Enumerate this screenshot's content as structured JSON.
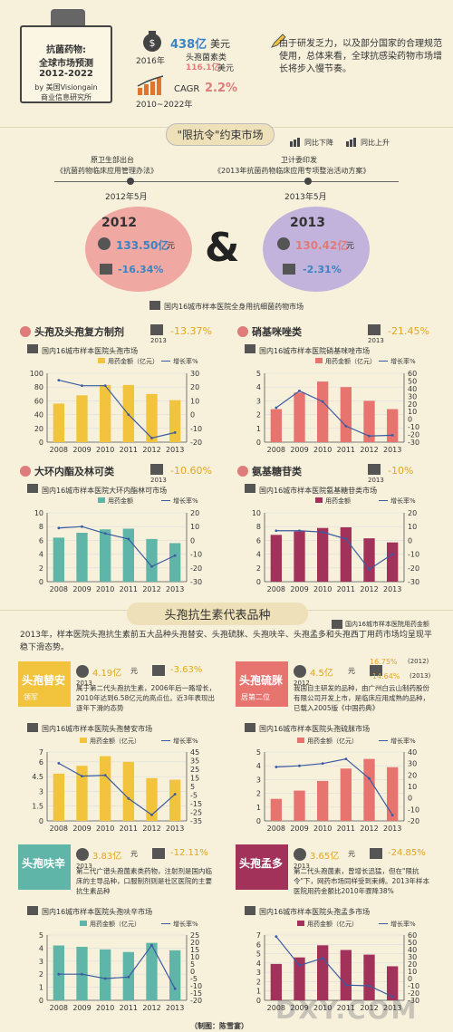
{
  "header": {
    "box_line1": "抗菌药物:",
    "box_line2": "全球市场预测",
    "box_line3": "2012-2022",
    "box_line4": "by 美国Visiongain",
    "box_line5": "商业信息研究所",
    "stat_value": "438亿",
    "stat_unit": "美元",
    "stat_year": "2016年",
    "stat_sub": "头孢菌素类",
    "stat_sub_value": "116.1亿",
    "stat_sub_unit": "美元",
    "cagr_label": "CAGR",
    "cagr_value": "2.2%",
    "cagr_period": "2010~2022年",
    "note": "由于研发乏力，以及部分国家的合理规范使用，总体来看，全球抗感染药物市场增长将步入慢节奏。"
  },
  "section1": {
    "title": "\"限抗令\"约束市场",
    "legend_down": "同比下降",
    "legend_up": "同比上升",
    "policy1_org": "原卫生部出台",
    "policy1_name": "《抗菌药物临床应用管理办法》",
    "policy1_date": "2012年5月",
    "policy2_org": "卫计委印发",
    "policy2_name": "《2013年抗菌药物临床应用专项整治活动方案》",
    "policy2_date": "2013年5月",
    "y2012": "2012",
    "v2012": "133.50亿",
    "v2012_unit": "元",
    "c2012": "-16.34%",
    "y2013": "2013",
    "v2013": "130.42亿",
    "v2013_unit": "元",
    "c2013": "-2.31%",
    "amp": "&",
    "footnote": "国内16城市样本医院全身用抗细菌药物市场"
  },
  "panels": [
    {
      "title": "头孢及头孢复方制剂",
      "pct": "-13.37%",
      "year": "2013",
      "sub": "国内16城市样本医院头孢市场",
      "legend_bar": "用药金额（亿元）",
      "legend_line": "增长率%",
      "color": "#f2c43d"
    },
    {
      "title": "硝基咪唑类",
      "pct": "-21.45%",
      "year": "2013",
      "sub": "国内16城市样本医院硝基咪唑市场",
      "legend_bar": "用药金额（亿元）",
      "legend_line": "增长率%",
      "color": "#e87470"
    },
    {
      "title": "大环内酯及林可类",
      "pct": "-10.60%",
      "year": "2013",
      "sub": "国内16城市样本医院大环内酯林可市场",
      "legend_bar": "用药金额",
      "legend_line": "增长率%",
      "color": "#5fb5a8"
    },
    {
      "title": "氨基糖苷类",
      "pct": "-10%",
      "year": "2013",
      "sub": "国内16城市样本医院氨基糖苷类市场",
      "legend_bar": "用药金额",
      "legend_line": "增长率%",
      "color": "#a3325a"
    }
  ],
  "section2": {
    "title": "头孢抗生素代表品种",
    "legend": "国内16城市样本医院用药金额",
    "intro": "2013年，样本医院头孢抗生素前五大品种头孢替安、头孢硫脒、头孢呋辛、头孢孟多和头孢西丁用药市场均呈现平稳下滑态势。"
  },
  "drugs": [
    {
      "name": "头孢替安",
      "tag": "领军",
      "value": "4.19亿",
      "unit": "元",
      "year": "2013",
      "pct": "-3.63%",
      "desc": "属于第二代头孢抗生素，2006年后一路增长，2010年达到6.58亿元的高点位。近3年表现出逐年下滑的态势",
      "sub": "国内16城市样本医院头孢替安市场",
      "legend_bar": "用药金额（亿元）",
      "legend_line": "增长率%",
      "color": "#f2c43d",
      "badge": "#f2c43d"
    },
    {
      "name": "头孢硫脒",
      "tag": "居第二位",
      "value": "4.5亿",
      "unit": "元",
      "year": "2012",
      "pct1": "16.75%",
      "pct1_year": "(2012)",
      "pct2": "-14.64%",
      "pct2_year": "(2013)",
      "desc": "我国自主研发的品种，由广州白云山制药股份有限公司开发上市，是临床应用成熟的品种，已载入2005版《中国药典》",
      "sub": "国内16城市样本医院头孢硫脒市场",
      "legend_bar": "用药金额（亿元）",
      "legend_line": "增长率%",
      "color": "#e87470",
      "badge": "#e87470"
    },
    {
      "name": "头孢呋辛",
      "value": "3.83亿",
      "unit": "元",
      "year": "2013",
      "pct": "-12.11%",
      "desc": "第二代广谱头孢菌素类药物，注射剂是国内临床的主导品种，口服制剂则是社区医院的主要抗生素品种",
      "sub": "国内16城市样本医院头孢呋辛市场",
      "legend_bar": "用药金额（亿元）",
      "legend_line": "增长率%",
      "color": "#5fb5a8",
      "badge": "#5fb5a8"
    },
    {
      "name": "头孢孟多",
      "value": "3.65亿",
      "unit": "元",
      "year": "2013",
      "pct": "-24.85%",
      "desc": "第二代头孢菌素，曾增长迅猛，但在\"限抗令\"下，网药市场同样受到束缚。2013年样本医院用药金额比2010年骤降38%",
      "sub": "国内16城市样本医院头孢孟多市场",
      "legend_bar": "用药金额（亿元）",
      "legend_line": "增长率%",
      "color": "#a3325a",
      "badge": "#a3325a"
    }
  ],
  "credit": "（制图：陈雪宴）",
  "watermark": "DXY.COM",
  "chart_data": [
    {
      "type": "bar",
      "title": "国内16城市样本医院头孢市场",
      "categories": [
        "2008",
        "2009",
        "2010",
        "2011",
        "2012",
        "2013"
      ],
      "series": [
        {
          "name": "用药金额（亿元）",
          "type": "bar",
          "values": [
            56,
            68,
            83,
            83,
            70,
            61
          ]
        },
        {
          "name": "增长率%",
          "type": "line",
          "axis": "right",
          "values": [
            25,
            21,
            21,
            0,
            -17,
            -13
          ]
        }
      ],
      "ylim": [
        0,
        100
      ],
      "y2lim": [
        -20,
        30
      ],
      "yticks": [
        0,
        20,
        40,
        60,
        80,
        100
      ],
      "y2ticks": [
        -20,
        -10,
        0,
        10,
        20,
        30
      ]
    },
    {
      "type": "bar",
      "title": "国内16城市样本医院硝基咪唑市场",
      "categories": [
        "2008",
        "2009",
        "2010",
        "2011",
        "2012",
        "2013"
      ],
      "series": [
        {
          "name": "用药金额（亿元）",
          "type": "bar",
          "values": [
            2.4,
            3.6,
            4.4,
            4.0,
            3.0,
            2.4
          ]
        },
        {
          "name": "增长率%",
          "type": "line",
          "axis": "right",
          "values": [
            15,
            37,
            23,
            -9,
            -22,
            -21
          ]
        }
      ],
      "ylim": [
        0,
        5
      ],
      "y2lim": [
        -30,
        60
      ],
      "yticks": [
        0,
        1,
        2,
        3,
        4,
        5
      ],
      "y2ticks": [
        -30,
        -20,
        -10,
        0,
        10,
        20,
        30,
        40,
        50,
        60
      ]
    },
    {
      "type": "bar",
      "title": "国内16城市样本医院大环内酯林可市场",
      "categories": [
        "2008",
        "2009",
        "2010",
        "2011",
        "2012",
        "2013"
      ],
      "series": [
        {
          "name": "用药金额",
          "type": "bar",
          "values": [
            6.4,
            7.1,
            7.6,
            7.7,
            6.2,
            5.6
          ]
        },
        {
          "name": "增长率%",
          "type": "line",
          "axis": "right",
          "values": [
            9,
            10,
            5,
            1,
            -19,
            -11
          ]
        }
      ],
      "ylim": [
        0,
        10
      ],
      "y2lim": [
        -30,
        20
      ],
      "yticks": [
        0,
        2,
        4,
        6,
        8,
        10
      ],
      "y2ticks": [
        -30,
        -20,
        -10,
        0,
        10,
        20
      ]
    },
    {
      "type": "bar",
      "title": "国内16城市样本医院氨基糖苷类市场",
      "categories": [
        "2008",
        "2009",
        "2010",
        "2011",
        "2012",
        "2013"
      ],
      "series": [
        {
          "name": "用药金额",
          "type": "bar",
          "values": [
            6.8,
            7.3,
            7.8,
            7.9,
            6.3,
            5.7
          ]
        },
        {
          "name": "增长率%",
          "type": "line",
          "axis": "right",
          "values": [
            7,
            7,
            6,
            1,
            -21,
            -10
          ]
        }
      ],
      "ylim": [
        0,
        10
      ],
      "y2lim": [
        -30,
        20
      ],
      "yticks": [
        0,
        2,
        4,
        6,
        8,
        10
      ],
      "y2ticks": [
        -30,
        -20,
        -10,
        0,
        10,
        20
      ]
    },
    {
      "type": "bar",
      "title": "国内16城市样本医院头孢替安市场",
      "categories": [
        "2008",
        "2009",
        "2010",
        "2011",
        "2012",
        "2013"
      ],
      "series": [
        {
          "name": "用药金额（亿元）",
          "type": "bar",
          "values": [
            4.8,
            5.6,
            6.58,
            6.0,
            4.35,
            4.19
          ]
        },
        {
          "name": "增长率%",
          "type": "line",
          "axis": "right",
          "values": [
            32,
            17,
            18,
            -9,
            -28,
            -4
          ]
        }
      ],
      "ylim": [
        0,
        7
      ],
      "y2lim": [
        -35,
        45
      ],
      "yticks": [
        0,
        1.5,
        3,
        4.5,
        6,
        7
      ],
      "y2ticks": [
        -35,
        -25,
        -15,
        -5,
        5,
        15,
        25,
        35,
        45
      ]
    },
    {
      "type": "bar",
      "title": "国内16城市样本医院头孢硫脒市场",
      "categories": [
        "2008",
        "2009",
        "2010",
        "2011",
        "2012",
        "2013"
      ],
      "series": [
        {
          "name": "用药金额（亿元）",
          "type": "bar",
          "values": [
            1.6,
            2.2,
            2.9,
            3.8,
            4.5,
            3.9
          ]
        },
        {
          "name": "增长率%",
          "type": "line",
          "axis": "right",
          "values": [
            27,
            28,
            30,
            34,
            17,
            -15
          ]
        }
      ],
      "ylim": [
        0,
        5
      ],
      "y2lim": [
        -20,
        40
      ],
      "yticks": [
        0,
        1,
        2,
        3,
        4,
        5
      ],
      "y2ticks": [
        -20,
        -10,
        0,
        10,
        20,
        30,
        40
      ]
    },
    {
      "type": "bar",
      "title": "国内16城市样本医院头孢呋辛市场",
      "categories": [
        "2008",
        "2009",
        "2010",
        "2011",
        "2012",
        "2013"
      ],
      "series": [
        {
          "name": "用药金额（亿元）",
          "type": "bar",
          "values": [
            4.2,
            4.1,
            3.9,
            3.7,
            4.4,
            3.83
          ]
        },
        {
          "name": "增长率%",
          "type": "line",
          "axis": "right",
          "values": [
            -2,
            -2,
            -5,
            -4,
            18,
            -12
          ]
        }
      ],
      "ylim": [
        0,
        5
      ],
      "y2lim": [
        -20,
        25
      ],
      "yticks": [
        0,
        1,
        2,
        3,
        4,
        5
      ],
      "y2ticks": [
        -20,
        -15,
        -10,
        -5,
        0,
        5,
        10,
        15,
        20,
        25
      ]
    },
    {
      "type": "bar",
      "title": "国内16城市样本医院头孢孟多市场",
      "categories": [
        "2008",
        "2009",
        "2010",
        "2011",
        "2012",
        "2013"
      ],
      "series": [
        {
          "name": "用药金额（亿元）",
          "type": "bar",
          "values": [
            3.9,
            4.6,
            5.9,
            5.4,
            4.9,
            3.65
          ]
        },
        {
          "name": "增长率%",
          "type": "line",
          "axis": "right",
          "values": [
            58,
            18,
            28,
            -9,
            -10,
            -25
          ]
        }
      ],
      "ylim": [
        0,
        7
      ],
      "y2lim": [
        -30,
        60
      ],
      "yticks": [
        0,
        1,
        2,
        3,
        4,
        5,
        6,
        7
      ],
      "y2ticks": [
        -30,
        -20,
        -10,
        0,
        10,
        20,
        30,
        40,
        50,
        60
      ]
    }
  ]
}
